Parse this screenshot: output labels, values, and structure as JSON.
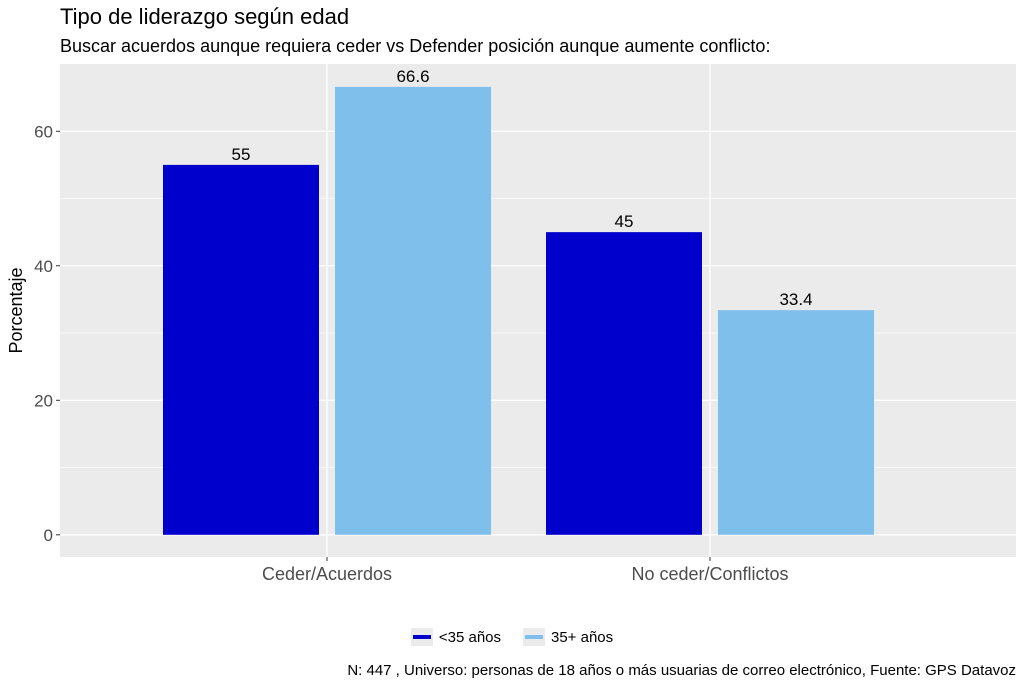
{
  "chart_data": {
    "type": "bar",
    "title": "Tipo de liderazgo según edad",
    "subtitle": "Buscar acuerdos aunque requiera ceder vs Defender posición aunque aumente conflicto:",
    "xlabel": "",
    "ylabel": "Porcentaje",
    "categories": [
      "Ceder/Acuerdos",
      "No ceder/Conflictos"
    ],
    "series": [
      {
        "name": "<35 años",
        "values": [
          55,
          45
        ],
        "labels": [
          "55",
          "45"
        ],
        "color": "#0000CD"
      },
      {
        "name": "35+ años",
        "values": [
          66.6,
          33.4
        ],
        "labels": [
          "66.6",
          "33.4"
        ],
        "color": "#7FBFEC"
      }
    ],
    "yticks": [
      0,
      20,
      40,
      60
    ],
    "ylim": [
      -3.3,
      70
    ],
    "grid": true,
    "legend_position": "bottom",
    "caption": "N: 447 , Universo: personas de 18 años o más usuarias de correo electrónico, Fuente: GPS Datavoz"
  },
  "colors": {
    "panel_background": "#EBEBEB",
    "grid_line": "#FFFFFF",
    "axis_text": "#4D4D4D"
  }
}
